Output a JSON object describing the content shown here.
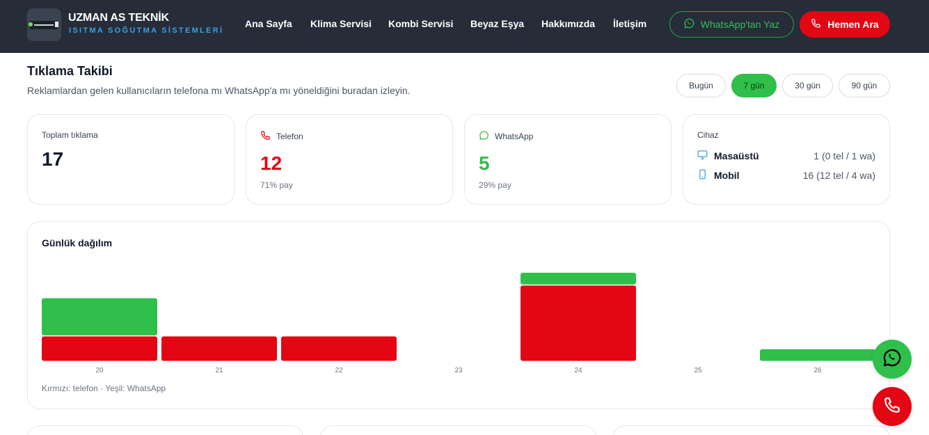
{
  "brand": {
    "title": "UZMAN AS TEKNİK",
    "subtitle": "ISITMA SOĞUTMA SİSTEMLERİ"
  },
  "nav": {
    "items": [
      "Ana Sayfa",
      "Klima Servisi",
      "Kombi Servisi",
      "Beyaz Eşya",
      "Hakkımızda",
      "İletişim"
    ]
  },
  "header_buttons": {
    "whatsapp": "WhatsApp'tan Yaz",
    "call": "Hemen Ara"
  },
  "page": {
    "title": "Tıklama Takibi",
    "description": "Reklamlardan gelen kullanıcıların telefona mı WhatsApp'a mı yöneldiğini buradan izleyin."
  },
  "ranges": {
    "items": [
      "Bugün",
      "7 gün",
      "30 gün",
      "90 gün"
    ],
    "active": "7 gün"
  },
  "stats": {
    "total": {
      "label": "Toplam tıklama",
      "value": "17"
    },
    "phone": {
      "label": "Telefon",
      "value": "12",
      "share": "71% pay"
    },
    "whatsapp": {
      "label": "WhatsApp",
      "value": "5",
      "share": "29% pay"
    },
    "device": {
      "label": "Cihaz",
      "rows": [
        {
          "name": "Masaüstü",
          "value": "1 (0 tel / 1 wa)",
          "icon": "desktop-icon"
        },
        {
          "name": "Mobil",
          "value": "16 (12 tel / 4 wa)",
          "icon": "mobile-icon"
        }
      ]
    }
  },
  "chart": {
    "title": "Günlük dağılım",
    "legend": "Kırmızı: telefon · Yeşil: WhatsApp"
  },
  "chart_data": {
    "type": "bar",
    "stacked": true,
    "categories": [
      "20",
      "21",
      "22",
      "23",
      "24",
      "25",
      "26"
    ],
    "series": [
      {
        "name": "telefon",
        "color": "#e30613",
        "values": [
          2,
          2,
          2,
          0,
          6,
          0,
          0
        ]
      },
      {
        "name": "WhatsApp",
        "color": "#2fbf4a",
        "values": [
          3,
          0,
          0,
          0,
          1,
          0,
          1
        ]
      }
    ],
    "ylim": [
      0,
      7
    ],
    "grid": false
  },
  "colors": {
    "accent_green": "#2fbf4a",
    "accent_red": "#e30613",
    "header_bg": "#262d38"
  }
}
